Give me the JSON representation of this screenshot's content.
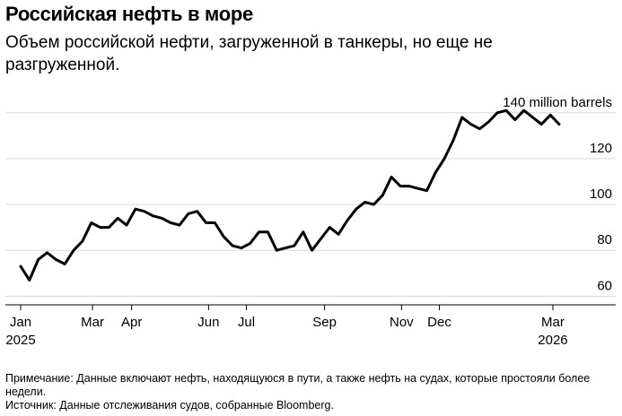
{
  "title": "Российская нефть в море",
  "subtitle": "Объем российской нефти, загруженной в танкеры, но еще не разгруженной.",
  "note": "Примечание: Данные включают нефть, находящуюся в пути, а также нефть на судах, которые простояли более недели.",
  "source": "Источник: Данные отслеживания судов, собранные Bloomberg.",
  "chart_data": {
    "type": "line",
    "title": "Российская нефть в море",
    "subtitle": "Объем российской нефти, загруженной в танкеры, но еще не разгруженной.",
    "xlabel": "",
    "ylabel": "",
    "unit_label": "140 million barrels",
    "ylim": [
      57,
      145
    ],
    "yticks": [
      60,
      80,
      100,
      120,
      140
    ],
    "ytick_labels": [
      "60",
      "80",
      "100",
      "120",
      "140 million barrels"
    ],
    "xticks": [
      {
        "date": "2025-01-03",
        "label": "Jan",
        "year": "2025"
      },
      {
        "date": "2025-03-01",
        "label": "Mar",
        "year": ""
      },
      {
        "date": "2025-04-01",
        "label": "Apr",
        "year": ""
      },
      {
        "date": "2025-06-01",
        "label": "Jun",
        "year": ""
      },
      {
        "date": "2025-07-01",
        "label": "Jul",
        "year": ""
      },
      {
        "date": "2025-09-01",
        "label": "Sep",
        "year": ""
      },
      {
        "date": "2025-11-01",
        "label": "Nov",
        "year": ""
      },
      {
        "date": "2025-12-01",
        "label": "Dec",
        "year": ""
      },
      {
        "date": "2026-03-01",
        "label": "Mar",
        "year": "2026"
      }
    ],
    "grid": true,
    "series": [
      {
        "name": "",
        "color": "#000000",
        "points": [
          {
            "x": "2025-01-03",
            "y": 73
          },
          {
            "x": "2025-01-10",
            "y": 67
          },
          {
            "x": "2025-01-17",
            "y": 76
          },
          {
            "x": "2025-01-24",
            "y": 79
          },
          {
            "x": "2025-01-31",
            "y": 76
          },
          {
            "x": "2025-02-07",
            "y": 74
          },
          {
            "x": "2025-02-14",
            "y": 80
          },
          {
            "x": "2025-02-21",
            "y": 84
          },
          {
            "x": "2025-02-28",
            "y": 92
          },
          {
            "x": "2025-03-07",
            "y": 90
          },
          {
            "x": "2025-03-14",
            "y": 90
          },
          {
            "x": "2025-03-21",
            "y": 94
          },
          {
            "x": "2025-03-28",
            "y": 91
          },
          {
            "x": "2025-04-04",
            "y": 98
          },
          {
            "x": "2025-04-11",
            "y": 97
          },
          {
            "x": "2025-04-18",
            "y": 95
          },
          {
            "x": "2025-04-25",
            "y": 94
          },
          {
            "x": "2025-05-02",
            "y": 92
          },
          {
            "x": "2025-05-09",
            "y": 91
          },
          {
            "x": "2025-05-16",
            "y": 96
          },
          {
            "x": "2025-05-23",
            "y": 97
          },
          {
            "x": "2025-05-30",
            "y": 92
          },
          {
            "x": "2025-06-06",
            "y": 92
          },
          {
            "x": "2025-06-13",
            "y": 86
          },
          {
            "x": "2025-06-20",
            "y": 82
          },
          {
            "x": "2025-06-27",
            "y": 81
          },
          {
            "x": "2025-07-04",
            "y": 83
          },
          {
            "x": "2025-07-11",
            "y": 88
          },
          {
            "x": "2025-07-18",
            "y": 88
          },
          {
            "x": "2025-07-25",
            "y": 80
          },
          {
            "x": "2025-08-01",
            "y": 81
          },
          {
            "x": "2025-08-08",
            "y": 82
          },
          {
            "x": "2025-08-15",
            "y": 88
          },
          {
            "x": "2025-08-22",
            "y": 80
          },
          {
            "x": "2025-08-29",
            "y": 85
          },
          {
            "x": "2025-09-05",
            "y": 90
          },
          {
            "x": "2025-09-12",
            "y": 87
          },
          {
            "x": "2025-09-19",
            "y": 93
          },
          {
            "x": "2025-09-26",
            "y": 98
          },
          {
            "x": "2025-10-03",
            "y": 101
          },
          {
            "x": "2025-10-10",
            "y": 100
          },
          {
            "x": "2025-10-17",
            "y": 104
          },
          {
            "x": "2025-10-24",
            "y": 112
          },
          {
            "x": "2025-10-31",
            "y": 108
          },
          {
            "x": "2025-11-07",
            "y": 108
          },
          {
            "x": "2025-11-14",
            "y": 107
          },
          {
            "x": "2025-11-21",
            "y": 106
          },
          {
            "x": "2025-11-28",
            "y": 114
          },
          {
            "x": "2025-12-05",
            "y": 120
          },
          {
            "x": "2025-12-12",
            "y": 128
          },
          {
            "x": "2025-12-19",
            "y": 138
          },
          {
            "x": "2025-12-26",
            "y": 135
          },
          {
            "x": "2026-01-02",
            "y": 133
          },
          {
            "x": "2026-01-09",
            "y": 136
          },
          {
            "x": "2026-01-16",
            "y": 140
          },
          {
            "x": "2026-01-23",
            "y": 141
          },
          {
            "x": "2026-01-30",
            "y": 137
          },
          {
            "x": "2026-02-06",
            "y": 141
          },
          {
            "x": "2026-02-13",
            "y": 138
          },
          {
            "x": "2026-02-20",
            "y": 135
          },
          {
            "x": "2026-02-27",
            "y": 139
          },
          {
            "x": "2026-03-06",
            "y": 135
          }
        ]
      }
    ]
  }
}
